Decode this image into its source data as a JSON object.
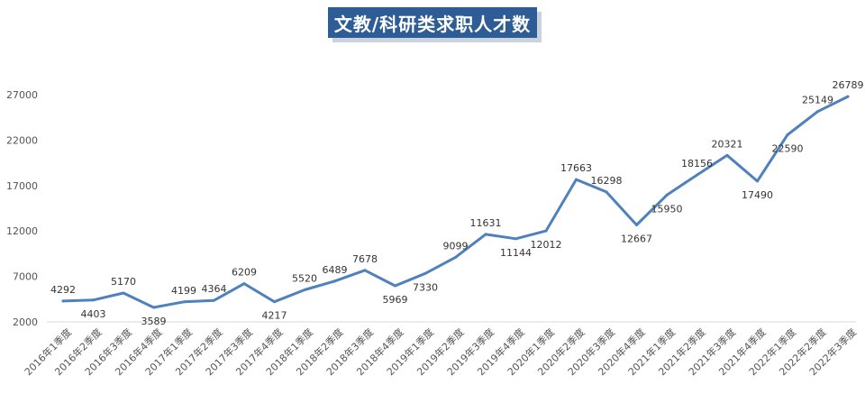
{
  "chart_data": {
    "type": "line",
    "title": "文教/科研类求职人才数",
    "xlabel": "",
    "ylabel": "",
    "categories": [
      "2016年1季度",
      "2016年2季度",
      "2016年3季度",
      "2016年4季度",
      "2017年1季度",
      "2017年2季度",
      "2017年3季度",
      "2017年4季度",
      "2018年1季度",
      "2018年2季度",
      "2018年3季度",
      "2018年4季度",
      "2019年1季度",
      "2019年2季度",
      "2019年3季度",
      "2019年4季度",
      "2020年1季度",
      "2020年2季度",
      "2020年3季度",
      "2020年4季度",
      "2021年1季度",
      "2021年2季度",
      "2021年3季度",
      "2021年4季度",
      "2022年1季度",
      "2022年2季度",
      "2022年3季度"
    ],
    "series": [
      {
        "values": [
          4292,
          4403,
          5170,
          3589,
          4199,
          4364,
          6209,
          4217,
          5520,
          6489,
          7678,
          5969,
          7330,
          9099,
          11631,
          11144,
          12012,
          17663,
          16298,
          12667,
          15950,
          18156,
          20321,
          17490,
          22590,
          25149,
          26789
        ]
      }
    ],
    "label_positions": [
      "above",
      "below",
      "above",
      "below",
      "above",
      "above",
      "above",
      "below",
      "above",
      "above",
      "above",
      "below",
      "below",
      "above",
      "above",
      "below",
      "below",
      "above",
      "above",
      "below",
      "below",
      "above",
      "above",
      "below",
      "below",
      "above",
      "above"
    ],
    "y_ticks": [
      2000,
      7000,
      12000,
      17000,
      22000,
      27000
    ],
    "ylim": [
      2000,
      27000
    ],
    "grid": false,
    "legend": "none",
    "line_color": "#4f81bd",
    "title_bg": "#2e5c94"
  }
}
